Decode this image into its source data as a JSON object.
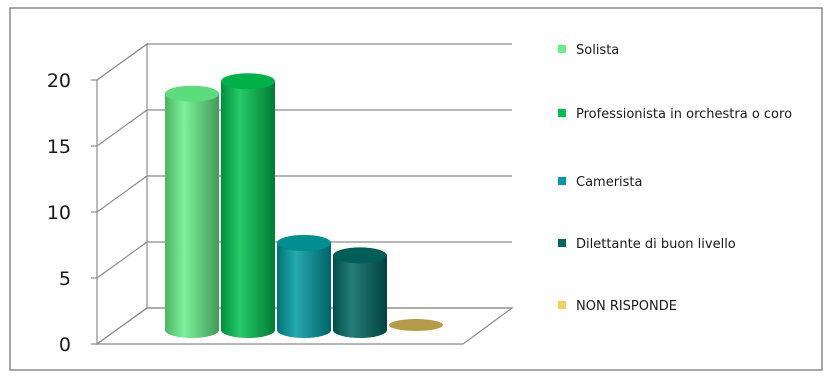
{
  "chart_data": {
    "type": "bar",
    "title": "",
    "xlabel": "",
    "ylabel": "",
    "ylim": [
      0,
      20
    ],
    "yticks": [
      0,
      5,
      10,
      15,
      20
    ],
    "grid": true,
    "legend_position": "right",
    "series": [
      {
        "name": "Solista",
        "value": 19,
        "color": "#66ee88"
      },
      {
        "name": "Professionista in orchestra o coro",
        "value": 20,
        "color": "#00c050"
      },
      {
        "name": "Camerista",
        "value": 7,
        "color": "#009aa0"
      },
      {
        "name": "Dilettante di buon livello",
        "value": 6,
        "color": "#006660"
      },
      {
        "name": "NON RISPONDE",
        "value": 0,
        "color": "#f2d060"
      }
    ]
  }
}
